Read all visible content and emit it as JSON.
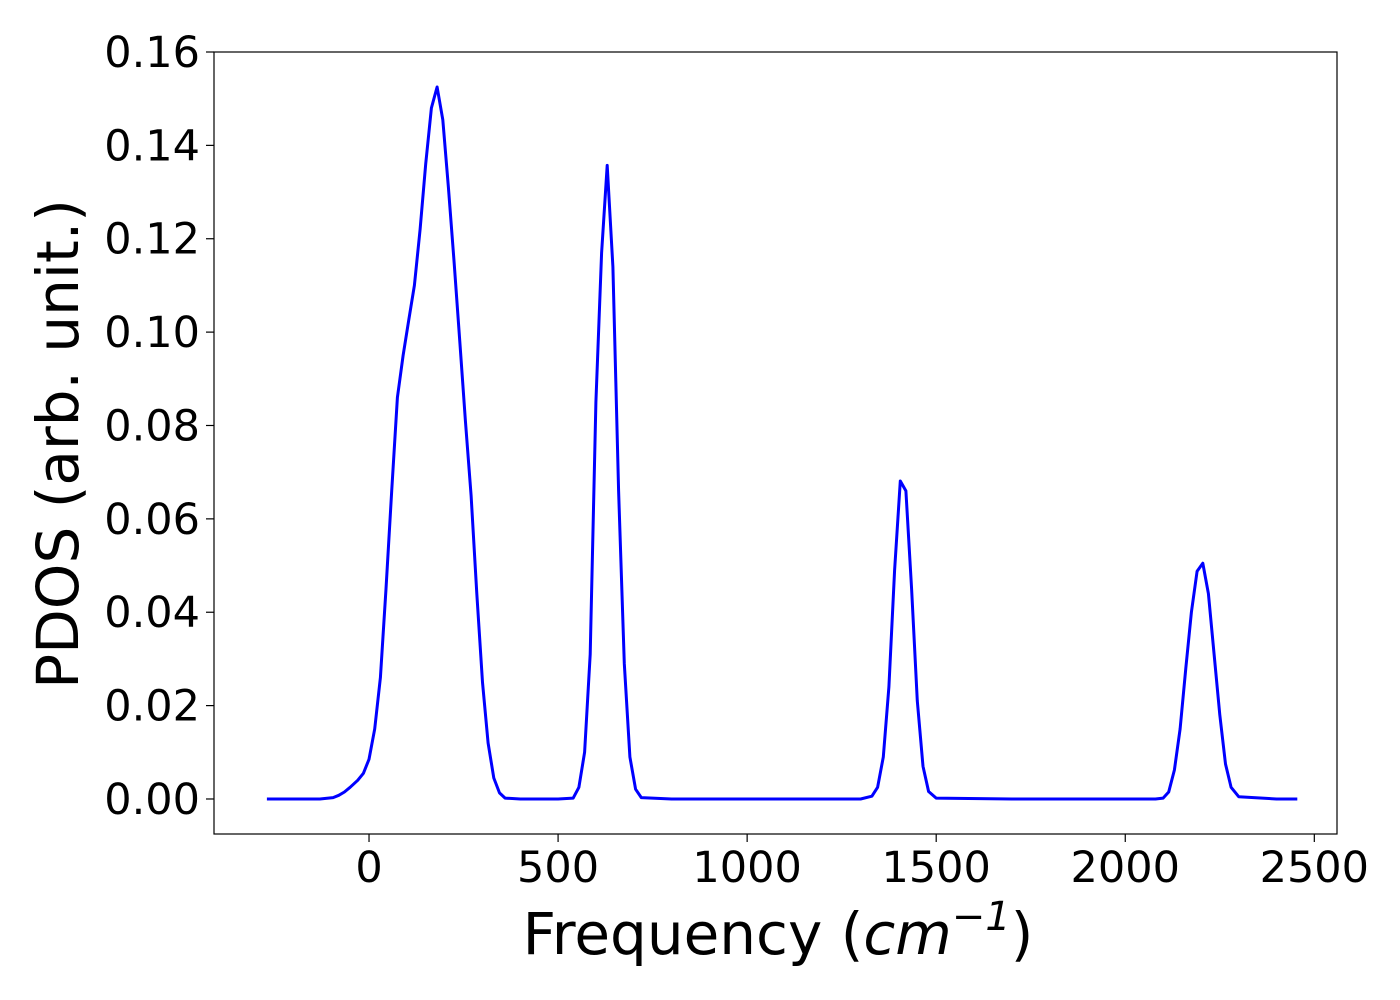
{
  "chart_data": {
    "type": "line",
    "title": "",
    "xlabel": "Frequency",
    "xlabel_unit": "cm",
    "xlabel_unit_exp": "−1",
    "ylabel": "PDOS (arb. unit.)",
    "xlim": [
      -410,
      2560
    ],
    "ylim": [
      -0.0075,
      0.16
    ],
    "xticks": [
      0,
      500,
      1000,
      1500,
      2000,
      2500
    ],
    "xtick_labels": [
      "0",
      "500",
      "1000",
      "1500",
      "2000",
      "2500"
    ],
    "yticks": [
      0.0,
      0.02,
      0.04,
      0.06,
      0.08,
      0.1,
      0.12,
      0.14,
      0.16
    ],
    "ytick_labels": [
      "0.00",
      "0.02",
      "0.04",
      "0.06",
      "0.08",
      "0.10",
      "0.12",
      "0.14",
      "0.16"
    ],
    "grid": false,
    "legend": "none",
    "series": [
      {
        "color": "#0000ff",
        "x": [
          -270,
          -200,
          -130,
          -95,
          -80,
          -65,
          -50,
          -30,
          -15,
          0,
          15,
          30,
          45,
          60,
          75,
          90,
          105,
          120,
          135,
          150,
          165,
          180,
          195,
          210,
          225,
          240,
          255,
          270,
          285,
          300,
          315,
          330,
          345,
          360,
          400,
          450,
          500,
          540,
          555,
          570,
          585,
          600,
          615,
          630,
          645,
          660,
          675,
          690,
          705,
          720,
          800,
          1000,
          1200,
          1300,
          1330,
          1345,
          1360,
          1375,
          1390,
          1405,
          1420,
          1435,
          1450,
          1465,
          1480,
          1500,
          1700,
          1900,
          2080,
          2100,
          2115,
          2130,
          2145,
          2160,
          2175,
          2190,
          2205,
          2220,
          2235,
          2250,
          2265,
          2280,
          2300,
          2400,
          2455
        ],
        "y": [
          0.0,
          0.0,
          0.0,
          0.0003,
          0.0008,
          0.0015,
          0.0025,
          0.004,
          0.0055,
          0.0085,
          0.015,
          0.026,
          0.045,
          0.066,
          0.086,
          0.095,
          0.1025,
          0.11,
          0.122,
          0.136,
          0.148,
          0.1525,
          0.1455,
          0.131,
          0.115,
          0.098,
          0.081,
          0.065,
          0.044,
          0.025,
          0.012,
          0.0045,
          0.0013,
          0.0002,
          0.0,
          0.0,
          0.0,
          0.0002,
          0.0025,
          0.01,
          0.031,
          0.085,
          0.117,
          0.1357,
          0.114,
          0.066,
          0.029,
          0.009,
          0.0021,
          0.0003,
          0.0,
          0.0,
          0.0,
          0.0,
          0.0006,
          0.0025,
          0.009,
          0.024,
          0.049,
          0.0681,
          0.066,
          0.045,
          0.021,
          0.007,
          0.0016,
          0.0002,
          0.0,
          0.0,
          0.0,
          0.0002,
          0.0015,
          0.0062,
          0.015,
          0.028,
          0.04,
          0.0488,
          0.0505,
          0.044,
          0.031,
          0.018,
          0.0075,
          0.0025,
          0.0005,
          0.0,
          0.0
        ]
      }
    ]
  }
}
